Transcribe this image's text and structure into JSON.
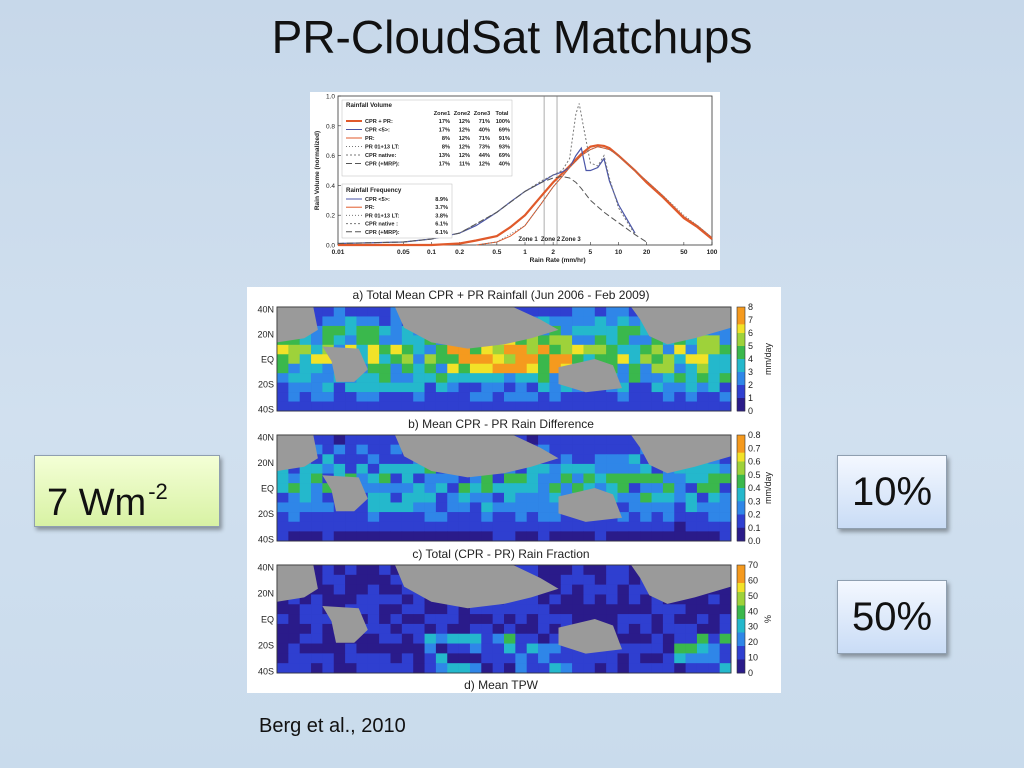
{
  "slide": {
    "title": "PR-CloudSat Matchups",
    "callout_left": {
      "value": "7 Wm",
      "superscript": "-2"
    },
    "callout_right_top": "10%",
    "callout_right_bottom": "50%",
    "citation": "Berg et al., 2010"
  },
  "colors": {
    "cpr_pr": "#e05a2b",
    "cpr_5": "#4b56a8",
    "pr": "#e05a2b",
    "pr_lt": "#777777",
    "cpr_native": "#777777",
    "cpr_mrp": "#555555",
    "land": "#9a9a9a"
  },
  "chart_data": [
    {
      "type": "line",
      "xscale": "log",
      "xlim": [
        0.01,
        100
      ],
      "ylim": [
        0.0,
        1.0
      ],
      "xlabel": "Rain Rate (mm/hr)",
      "ylabel": "Rain Volume (normalized)",
      "xticks": [
        {
          "v": 0.01,
          "label": "0.01"
        },
        {
          "v": 0.05,
          "label": "0.05"
        },
        {
          "v": 0.1,
          "label": "0.1"
        },
        {
          "v": 0.2,
          "label": "0.2"
        },
        {
          "v": 0.5,
          "label": "0.5"
        },
        {
          "v": 1,
          "label": "1"
        },
        {
          "v": 2,
          "label": "2"
        },
        {
          "v": 5,
          "label": "5"
        },
        {
          "v": 10,
          "label": "10"
        },
        {
          "v": 20,
          "label": "20"
        },
        {
          "v": 50,
          "label": "50"
        },
        {
          "v": 100,
          "label": "100"
        }
      ],
      "yticks": [
        {
          "v": 0.0,
          "label": "0.0"
        },
        {
          "v": 0.2,
          "label": "0.2"
        },
        {
          "v": 0.4,
          "label": "0.4"
        },
        {
          "v": 0.6,
          "label": "0.6"
        },
        {
          "v": 0.8,
          "label": "0.8"
        },
        {
          "v": 1.0,
          "label": "1.0"
        }
      ],
      "zones": [
        {
          "label": "Zone 1",
          "from": null,
          "to": 1.6
        },
        {
          "label": "Zone 2",
          "from": 1.6,
          "to": 2.2
        },
        {
          "label": "Zone 3",
          "from": 2.2,
          "to": null
        }
      ],
      "zone_boundaries": [
        1.6,
        2.2
      ],
      "series": [
        {
          "name": "CPR + PR:",
          "style": "cpr_pr",
          "width": 2.2,
          "dash": "",
          "x": [
            0.01,
            0.05,
            0.1,
            0.2,
            0.3,
            0.5,
            0.7,
            1,
            1.5,
            2,
            2.5,
            3,
            4,
            5,
            6,
            7,
            8,
            10,
            15,
            20,
            30,
            50,
            70,
            100
          ],
          "y": [
            0.0,
            0.0,
            0.0,
            0.01,
            0.03,
            0.06,
            0.12,
            0.2,
            0.33,
            0.42,
            0.48,
            0.53,
            0.61,
            0.66,
            0.67,
            0.665,
            0.65,
            0.6,
            0.5,
            0.42,
            0.32,
            0.18,
            0.12,
            0.04
          ]
        },
        {
          "name": "CPR <5>:",
          "style": "cpr_5",
          "width": 1.2,
          "dash": "",
          "x": [
            0.01,
            0.05,
            0.1,
            0.2,
            0.3,
            0.5,
            0.7,
            1,
            1.5,
            2,
            2.5,
            3,
            3.5,
            4,
            4.5,
            5,
            6,
            7,
            8,
            10,
            15
          ],
          "y": [
            0.01,
            0.02,
            0.04,
            0.08,
            0.13,
            0.22,
            0.29,
            0.36,
            0.42,
            0.47,
            0.49,
            0.52,
            0.6,
            0.65,
            0.5,
            0.5,
            0.52,
            0.58,
            0.43,
            0.27,
            0.08
          ]
        },
        {
          "name": "PR:",
          "style": "pr",
          "width": 1.0,
          "dash": "",
          "x": [
            0.3,
            0.5,
            0.7,
            1,
            1.5,
            2,
            2.5,
            3,
            4,
            5,
            6,
            7,
            8,
            10,
            15,
            20,
            30,
            50,
            70,
            100
          ],
          "y": [
            0.0,
            0.02,
            0.06,
            0.13,
            0.28,
            0.39,
            0.46,
            0.52,
            0.6,
            0.64,
            0.66,
            0.65,
            0.64,
            0.6,
            0.5,
            0.43,
            0.33,
            0.19,
            0.13,
            0.05
          ]
        },
        {
          "name": "PR 01+13 LT:",
          "style": "pr_lt",
          "width": 1.0,
          "dash": "1,2",
          "x": [
            0.3,
            0.5,
            1,
            1.5,
            2,
            3,
            4,
            5,
            6,
            7,
            8,
            10,
            15,
            20,
            30,
            50,
            70,
            100
          ],
          "y": [
            0.0,
            0.02,
            0.13,
            0.28,
            0.39,
            0.52,
            0.6,
            0.64,
            0.66,
            0.65,
            0.64,
            0.6,
            0.5,
            0.43,
            0.33,
            0.2,
            0.13,
            0.05
          ]
        },
        {
          "name": "CPR native:",
          "style": "cpr_native",
          "width": 1.0,
          "dash": "2,2",
          "x": [
            0.01,
            0.05,
            0.1,
            0.2,
            0.5,
            1,
            1.5,
            2,
            2.5,
            3,
            3.5,
            3.8,
            4.2,
            5,
            6,
            7,
            8,
            10,
            15
          ],
          "y": [
            0.01,
            0.02,
            0.04,
            0.08,
            0.22,
            0.36,
            0.43,
            0.47,
            0.5,
            0.58,
            0.88,
            0.95,
            0.8,
            0.55,
            0.53,
            0.6,
            0.45,
            0.25,
            0.07
          ]
        },
        {
          "name": "CPR (+MRP):",
          "style": "cpr_mrp",
          "width": 1.0,
          "dash": "6,3",
          "x": [
            0.01,
            0.05,
            0.1,
            0.2,
            0.5,
            1,
            1.5,
            2,
            2.5,
            3,
            3.5,
            4,
            5,
            7,
            10,
            15,
            20
          ],
          "y": [
            0.01,
            0.02,
            0.04,
            0.08,
            0.22,
            0.36,
            0.42,
            0.45,
            0.46,
            0.45,
            0.42,
            0.38,
            0.3,
            0.22,
            0.15,
            0.07,
            0.02
          ]
        }
      ],
      "legend_volume": {
        "title": "Rainfall Volume",
        "headers": [
          "Zone1",
          "Zone2",
          "Zone3",
          "Total"
        ],
        "rows": [
          {
            "name": "CPR + PR:",
            "style": "cpr_pr",
            "vals": [
              "17%",
              "12%",
              "71%",
              "100%"
            ]
          },
          {
            "name": "CPR <5>:",
            "style": "cpr_5",
            "vals": [
              "17%",
              "12%",
              "40%",
              "69%"
            ]
          },
          {
            "name": "PR:",
            "style": "pr",
            "vals": [
              "8%",
              "12%",
              "71%",
              "91%"
            ]
          },
          {
            "name": "PR 01+13 LT:",
            "style": "pr_lt",
            "vals": [
              "8%",
              "12%",
              "73%",
              "93%"
            ]
          },
          {
            "name": "CPR native:",
            "style": "cpr_native",
            "vals": [
              "13%",
              "12%",
              "44%",
              "69%"
            ]
          },
          {
            "name": "CPR (+MRP):",
            "style": "cpr_mrp",
            "vals": [
              "17%",
              "11%",
              "12%",
              "40%"
            ]
          }
        ]
      },
      "legend_frequency": {
        "title": "Rainfall Frequency",
        "rows": [
          {
            "name": "CPR <5>:",
            "style": "cpr_5",
            "val": "8.9%"
          },
          {
            "name": "PR:",
            "style": "pr",
            "val": "3.7%"
          },
          {
            "name": "PR 01+13 LT:",
            "style": "pr_lt",
            "val": "3.8%"
          },
          {
            "name": "CPR native :",
            "style": "cpr_native",
            "val": "6.1%"
          },
          {
            "name": "CPR (+MRP):",
            "style": "cpr_mrp",
            "val": "6.1%"
          }
        ]
      }
    },
    {
      "type": "heatmap",
      "title": "a) Total Mean CPR + PR Rainfall (Jun 2006 - Feb 2009)",
      "lat_labels": [
        "40N",
        "20N",
        "EQ",
        "20S",
        "40S"
      ],
      "colorbar": {
        "unit": "mm/day",
        "ticks": [
          "8",
          "7",
          "6",
          "5",
          "4",
          "3",
          "2",
          "1",
          "0"
        ]
      }
    },
    {
      "type": "heatmap",
      "title": "b) Mean CPR - PR Rain Difference",
      "lat_labels": [
        "40N",
        "20N",
        "EQ",
        "20S",
        "40S"
      ],
      "colorbar": {
        "unit": "mm/day",
        "ticks": [
          "0.8",
          "0.7",
          "0.6",
          "0.5",
          "0.4",
          "0.3",
          "0.2",
          "0.1",
          "0.0"
        ]
      }
    },
    {
      "type": "heatmap",
      "title": "c) Total (CPR - PR) Rain Fraction",
      "lat_labels": [
        "40N",
        "20N",
        "EQ",
        "20S",
        "40S"
      ],
      "colorbar": {
        "unit": "%",
        "ticks": [
          "70",
          "60",
          "50",
          "40",
          "30",
          "20",
          "10",
          "0"
        ]
      }
    },
    {
      "type": "heatmap",
      "title": "d) Mean TPW",
      "lat_labels": [],
      "colorbar": {
        "unit": "",
        "ticks": []
      }
    }
  ]
}
